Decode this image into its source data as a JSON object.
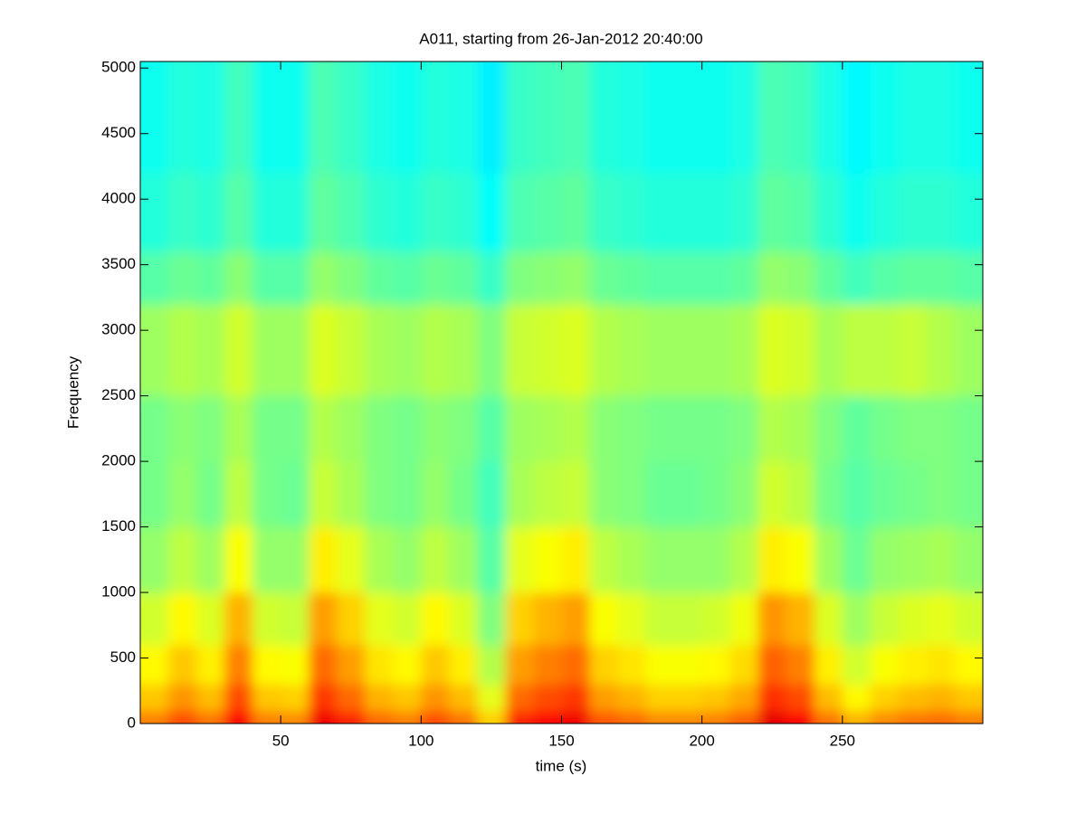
{
  "chart_data": {
    "type": "heatmap",
    "title": "A011, starting from 26-Jan-2012 20:40:00",
    "x_label": "time (s)",
    "y_label": "Frequency",
    "colormap": "jet",
    "xlim": [
      0,
      300
    ],
    "ylim": [
      0,
      5050
    ],
    "xticks": [
      50,
      100,
      150,
      200,
      250
    ],
    "yticks": [
      0,
      500,
      1000,
      1500,
      2000,
      2500,
      3000,
      3500,
      4000,
      4500,
      5000
    ],
    "x_bins": [
      0,
      10,
      20,
      30,
      40,
      50,
      60,
      70,
      80,
      90,
      100,
      110,
      120,
      130,
      140,
      150,
      160,
      170,
      180,
      190,
      200,
      210,
      220,
      230,
      240,
      250,
      260,
      270,
      280,
      290,
      300
    ],
    "y_bins": [
      0,
      100,
      300,
      600,
      1000,
      1500,
      2000,
      2500,
      3200,
      3600,
      4200,
      5050
    ],
    "z": [
      [
        0.75,
        0.8,
        0.76,
        0.87,
        0.75,
        0.74,
        0.89,
        0.84,
        0.77,
        0.75,
        0.8,
        0.76,
        0.67,
        0.84,
        0.87,
        0.89,
        0.79,
        0.77,
        0.74,
        0.74,
        0.75,
        0.78,
        0.9,
        0.87,
        0.76,
        0.7,
        0.74,
        0.76,
        0.77,
        0.75
      ],
      [
        0.68,
        0.73,
        0.69,
        0.8,
        0.68,
        0.67,
        0.82,
        0.77,
        0.7,
        0.68,
        0.73,
        0.69,
        0.6,
        0.77,
        0.8,
        0.82,
        0.72,
        0.7,
        0.67,
        0.67,
        0.68,
        0.71,
        0.83,
        0.8,
        0.69,
        0.63,
        0.67,
        0.69,
        0.7,
        0.68
      ],
      [
        0.63,
        0.68,
        0.64,
        0.75,
        0.63,
        0.62,
        0.77,
        0.72,
        0.65,
        0.63,
        0.68,
        0.64,
        0.55,
        0.72,
        0.75,
        0.77,
        0.67,
        0.65,
        0.62,
        0.62,
        0.63,
        0.66,
        0.78,
        0.75,
        0.64,
        0.58,
        0.62,
        0.64,
        0.65,
        0.63
      ],
      [
        0.58,
        0.63,
        0.59,
        0.7,
        0.58,
        0.57,
        0.72,
        0.67,
        0.6,
        0.58,
        0.63,
        0.59,
        0.5,
        0.67,
        0.7,
        0.72,
        0.62,
        0.6,
        0.57,
        0.57,
        0.58,
        0.61,
        0.73,
        0.7,
        0.59,
        0.53,
        0.57,
        0.59,
        0.6,
        0.58
      ],
      [
        0.52,
        0.56,
        0.53,
        0.62,
        0.52,
        0.52,
        0.64,
        0.6,
        0.54,
        0.52,
        0.56,
        0.53,
        0.46,
        0.6,
        0.62,
        0.64,
        0.56,
        0.54,
        0.52,
        0.52,
        0.52,
        0.55,
        0.64,
        0.62,
        0.53,
        0.48,
        0.52,
        0.53,
        0.54,
        0.52
      ],
      [
        0.49,
        0.52,
        0.49,
        0.56,
        0.49,
        0.48,
        0.57,
        0.54,
        0.5,
        0.49,
        0.52,
        0.49,
        0.44,
        0.54,
        0.56,
        0.57,
        0.51,
        0.5,
        0.48,
        0.48,
        0.49,
        0.51,
        0.58,
        0.56,
        0.49,
        0.46,
        0.48,
        0.49,
        0.5,
        0.49
      ],
      [
        0.49,
        0.51,
        0.5,
        0.54,
        0.49,
        0.49,
        0.55,
        0.53,
        0.5,
        0.49,
        0.51,
        0.5,
        0.46,
        0.53,
        0.54,
        0.55,
        0.51,
        0.5,
        0.49,
        0.49,
        0.49,
        0.5,
        0.55,
        0.54,
        0.5,
        0.47,
        0.49,
        0.5,
        0.5,
        0.49
      ],
      [
        0.53,
        0.55,
        0.54,
        0.58,
        0.53,
        0.53,
        0.59,
        0.57,
        0.54,
        0.53,
        0.55,
        0.54,
        0.5,
        0.57,
        0.58,
        0.59,
        0.55,
        0.54,
        0.53,
        0.53,
        0.53,
        0.54,
        0.59,
        0.58,
        0.54,
        0.56,
        0.56,
        0.57,
        0.55,
        0.53
      ],
      [
        0.46,
        0.48,
        0.47,
        0.51,
        0.46,
        0.46,
        0.52,
        0.5,
        0.47,
        0.46,
        0.48,
        0.47,
        0.43,
        0.5,
        0.51,
        0.52,
        0.48,
        0.47,
        0.46,
        0.46,
        0.46,
        0.47,
        0.52,
        0.51,
        0.47,
        0.44,
        0.46,
        0.47,
        0.47,
        0.46
      ],
      [
        0.41,
        0.43,
        0.42,
        0.46,
        0.41,
        0.41,
        0.47,
        0.45,
        0.42,
        0.41,
        0.43,
        0.42,
        0.38,
        0.45,
        0.46,
        0.47,
        0.43,
        0.42,
        0.41,
        0.41,
        0.41,
        0.42,
        0.47,
        0.46,
        0.42,
        0.39,
        0.41,
        0.42,
        0.42,
        0.41
      ],
      [
        0.39,
        0.41,
        0.4,
        0.44,
        0.39,
        0.39,
        0.45,
        0.43,
        0.4,
        0.39,
        0.41,
        0.4,
        0.36,
        0.43,
        0.44,
        0.45,
        0.41,
        0.4,
        0.39,
        0.39,
        0.39,
        0.4,
        0.45,
        0.44,
        0.4,
        0.37,
        0.39,
        0.4,
        0.4,
        0.39
      ]
    ]
  }
}
